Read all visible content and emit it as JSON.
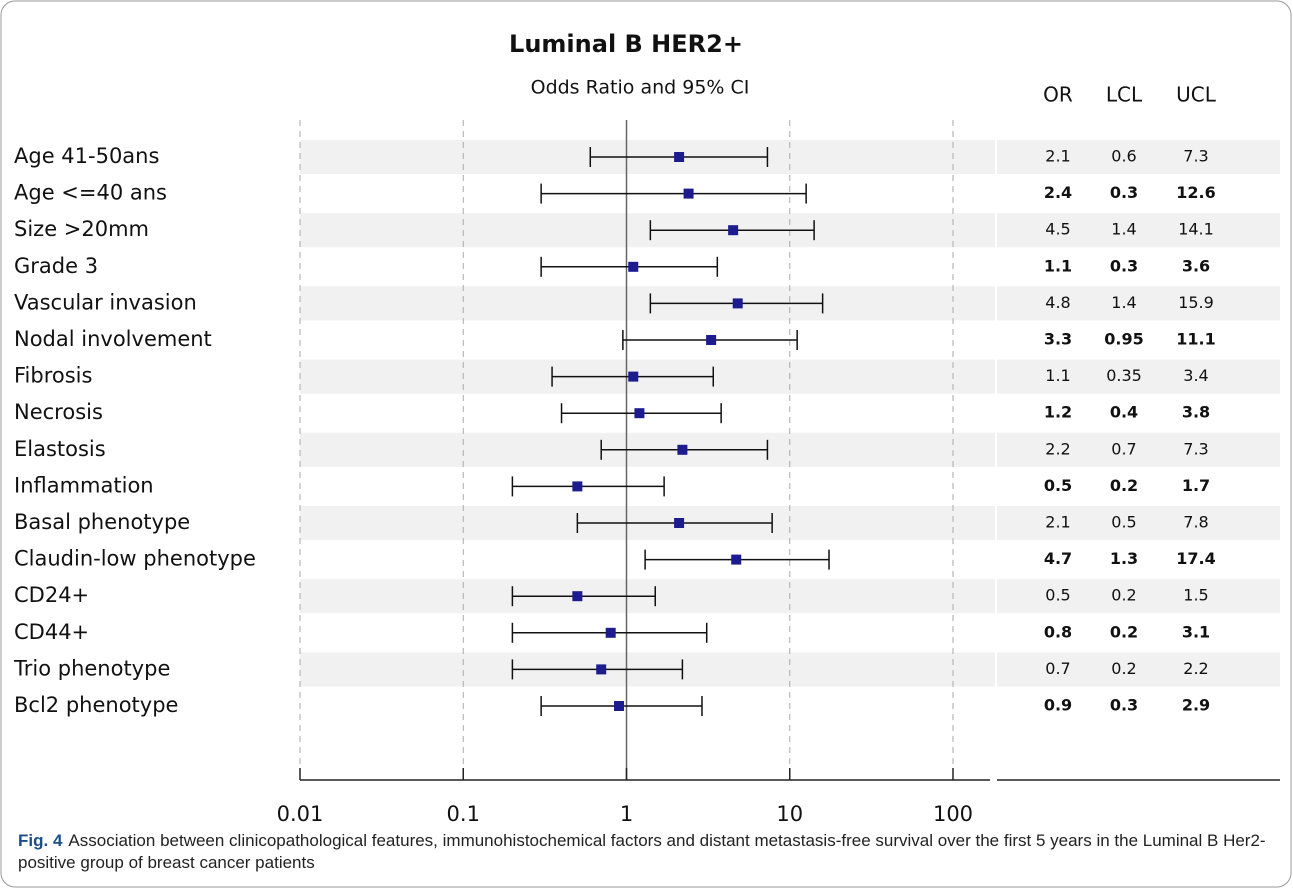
{
  "chart_data": {
    "type": "forest",
    "title": "Luminal B HER2+",
    "subtitle": "Odds Ratio and 95% CI",
    "table_headers": [
      "OR",
      "LCL",
      "UCL"
    ],
    "categories": [
      "Age 41-50ans",
      "Age <=40 ans",
      "Size >20mm",
      "Grade 3",
      "Vascular invasion",
      "Nodal involvement",
      "Fibrosis",
      "Necrosis",
      "Elastosis",
      "Inflammation",
      "Basal phenotype",
      "Claudin-low phenotype",
      "CD24+",
      "CD44+",
      "Trio phenotype",
      "Bcl2 phenotype"
    ],
    "values": [
      2.1,
      2.4,
      4.5,
      1.1,
      4.8,
      3.3,
      1.1,
      1.2,
      2.2,
      0.5,
      2.1,
      4.7,
      0.5,
      0.8,
      0.7,
      0.9
    ],
    "lower": [
      0.6,
      0.3,
      1.4,
      0.3,
      1.4,
      0.95,
      0.35,
      0.4,
      0.7,
      0.2,
      0.5,
      1.3,
      0.2,
      0.2,
      0.2,
      0.3
    ],
    "upper": [
      7.3,
      12.6,
      14.1,
      3.6,
      15.9,
      11.1,
      3.4,
      3.8,
      7.3,
      1.7,
      7.8,
      17.4,
      1.5,
      3.1,
      2.2,
      2.9
    ],
    "color": "#1c1c8f",
    "log_scale": true,
    "xlim": [
      0.01,
      100
    ],
    "xticks": [
      0.01,
      0.1,
      1,
      10,
      100
    ],
    "reference_line": 1,
    "grid": true
  },
  "caption": {
    "label": "Fig. 4",
    "text": "Association between clinicopathological features, immunohistochemical factors and distant metastasis-free survival over the first 5 years in the Luminal B Her2-positive group of breast cancer patients"
  }
}
